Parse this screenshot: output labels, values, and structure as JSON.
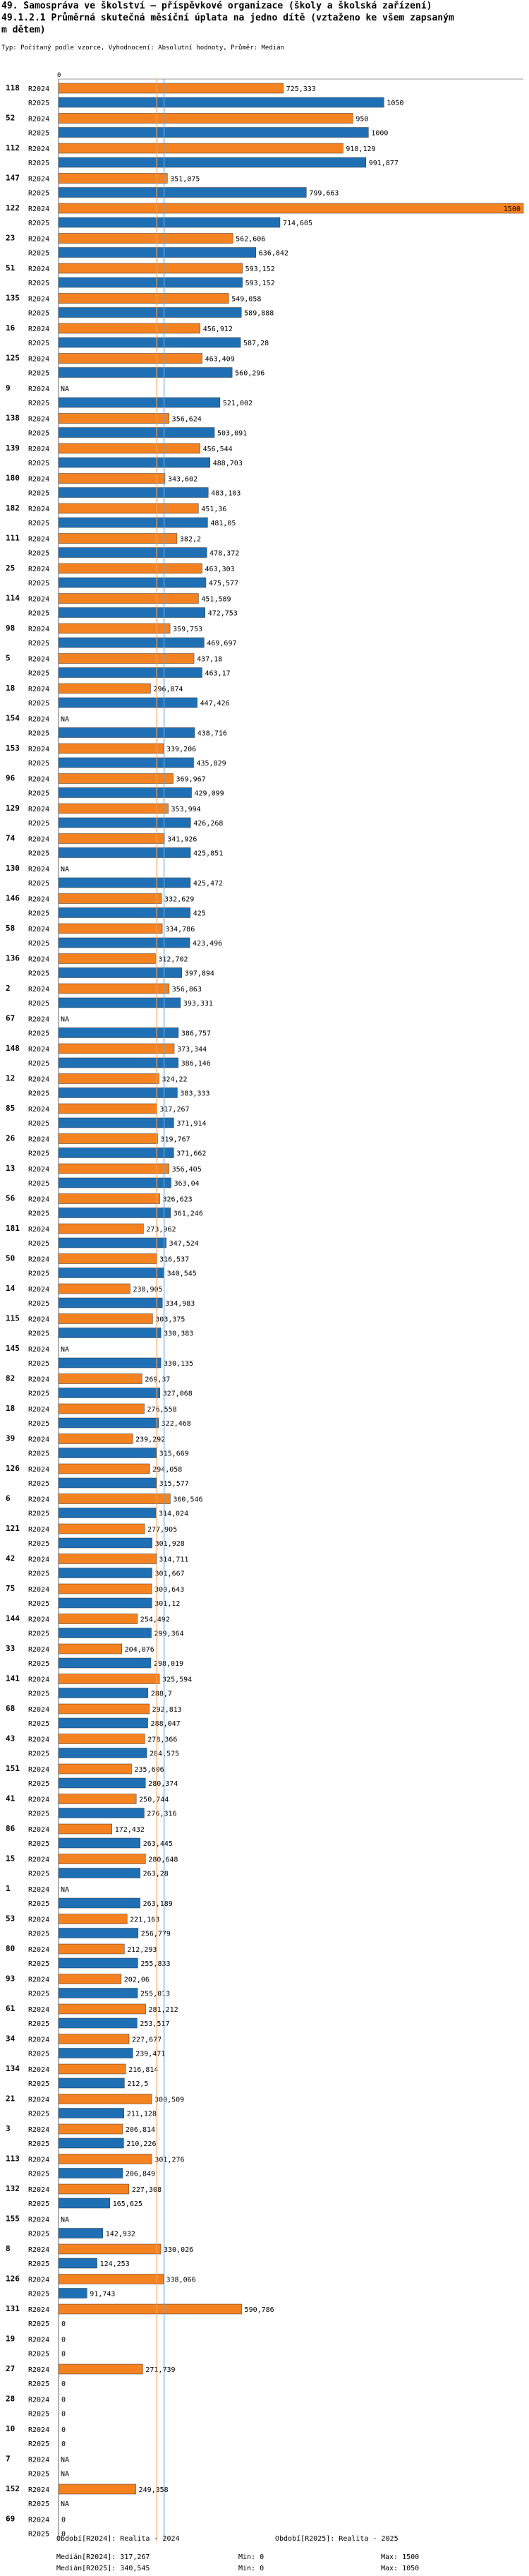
{
  "header": {
    "title_line1": "49. Samospráva ve školství – příspěvkové organizace (školy a školská zařízení)",
    "title_line2": "49.1.2.1 Průměrná skutečná měsíční úplata na jedno dítě (vztaženo ke všem zapsaným",
    "title_line3": "m dětem)",
    "subtitle": "Typ: Počítaný podle vzorce, Vyhodnocení: Absolutní hodnoty, Průměr: Medián"
  },
  "colors": {
    "r2024": "#f58220",
    "r2025": "#1f6fb4",
    "median2024": "#f7a35c",
    "median2025": "#6aa6d8"
  },
  "chart_data": {
    "type": "bar",
    "orientation": "horizontal",
    "axis_label_zero": "0",
    "xlim": [
      0,
      1500
    ],
    "na_label": "NA",
    "series_names": [
      "R2024",
      "R2025"
    ],
    "categories": [
      "118",
      "52",
      "112",
      "147",
      "122",
      "23",
      "51",
      "135",
      "16",
      "125",
      "9",
      "138",
      "139",
      "180",
      "182",
      "111",
      "25",
      "114",
      "98",
      "5",
      "18",
      "154",
      "153",
      "96",
      "129",
      "74",
      "130",
      "146",
      "58",
      "136",
      "2",
      "67",
      "148",
      "12",
      "85",
      "26",
      "13",
      "56",
      "181",
      "50",
      "14",
      "115",
      "145",
      "82",
      "18",
      "39",
      "126",
      "6",
      "121",
      "42",
      "75",
      "144",
      "33",
      "141",
      "68",
      "43",
      "151",
      "41",
      "86",
      "15",
      "1",
      "53",
      "80",
      "93",
      "61",
      "34",
      "134",
      "21",
      "3",
      "113",
      "132",
      "155",
      "8",
      "126",
      "131",
      "19",
      "27",
      "28",
      "10",
      "7",
      "152",
      "69"
    ],
    "values_2024": [
      725.333,
      950,
      918.129,
      351.075,
      1500,
      562.606,
      593.152,
      549.058,
      456.912,
      463.409,
      null,
      356.624,
      456.544,
      343.602,
      451.36,
      382.2,
      463.303,
      451.589,
      359.753,
      437.18,
      296.874,
      null,
      339.206,
      369.967,
      353.994,
      341.926,
      null,
      332.629,
      334.786,
      312.702,
      356.863,
      null,
      373.344,
      324.22,
      317.267,
      319.767,
      356.405,
      326.623,
      273.962,
      316.537,
      230.905,
      303.375,
      null,
      269.37,
      276.558,
      239.292,
      294.058,
      360.546,
      277.905,
      314.711,
      300.643,
      254.492,
      204.076,
      325.594,
      292.813,
      278.366,
      235.606,
      250.744,
      172.432,
      280.648,
      null,
      221.163,
      212.293,
      202.06,
      281.212,
      227.677,
      216.814,
      300.509,
      206.814,
      301.276,
      227.308,
      null,
      330.026,
      338.066,
      590.786,
      0,
      271.739,
      0,
      0,
      null,
      249.358,
      0
    ],
    "values_2025": [
      1050,
      1000,
      991.877,
      799.663,
      714.605,
      636.842,
      593.152,
      589.888,
      587.28,
      560.296,
      521.002,
      503.091,
      488.703,
      483.103,
      481.05,
      478.372,
      475.577,
      472.753,
      469.697,
      463.17,
      447.426,
      438.716,
      435.829,
      429.099,
      426.268,
      425.851,
      425.472,
      425,
      423.496,
      397.894,
      393.331,
      386.757,
      386.146,
      383.333,
      371.914,
      371.662,
      363.04,
      361.246,
      347.524,
      340.545,
      334.983,
      330.383,
      330.135,
      327.068,
      322.468,
      315.669,
      315.577,
      314.024,
      301.928,
      301.667,
      301.12,
      299.364,
      298.019,
      288.7,
      288.047,
      284.575,
      280.374,
      276.316,
      263.445,
      263.28,
      263.189,
      256.779,
      255.833,
      255.013,
      253.517,
      239.471,
      212.5,
      211.128,
      210.226,
      206.849,
      165.625,
      142.932,
      124.253,
      91.743,
      0,
      0,
      0,
      0,
      0,
      null,
      null,
      0
    ],
    "median_2024": 317.267,
    "median_2025": 340.545
  },
  "footer": {
    "legend_2024": "Období[R2024]: Realita - 2024",
    "legend_2025": "Období[R2025]: Realita - 2025",
    "median_2024": "Medián[R2024]: 317,267",
    "median_2025": "Medián[R2025]: 340,545",
    "min_2024": "Min: 0",
    "min_2025": "Min: 0",
    "max_2024": "Max: 1500",
    "max_2025": "Max: 1050"
  }
}
